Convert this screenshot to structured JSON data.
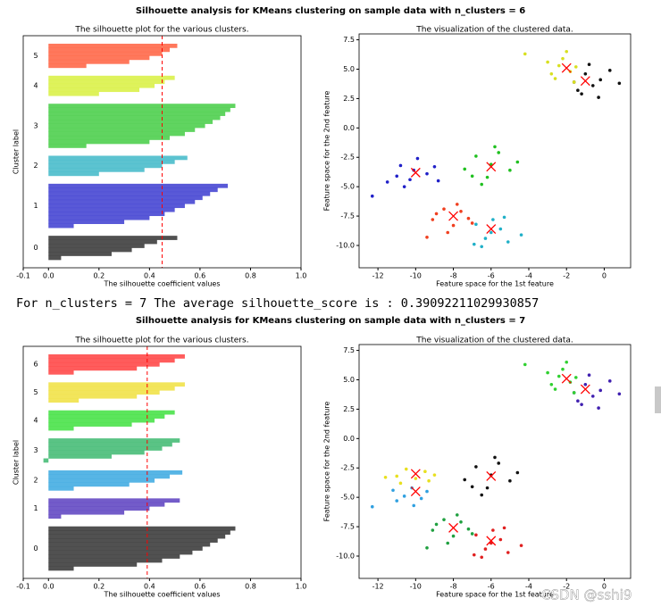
{
  "figures": [
    {
      "title": "Silhouette analysis for KMeans clustering on sample data with n_clusters = 6"
    },
    {
      "title": "Silhouette analysis for KMeans clustering on sample data with n_clusters = 7"
    }
  ],
  "output_line": "For n_clusters = 7 The average silhouette_score is : 0.39092211029930857",
  "watermark": "CSDN @sshi9",
  "chart_data": [
    {
      "type": "silhouette",
      "title": "The silhouette plot for the various clusters.",
      "xlabel": "The silhouette coefficient values",
      "ylabel": "Cluster label",
      "xlim": [
        -0.1,
        1.0
      ],
      "xticks": [
        -0.1,
        {
          "value": 0,
          "label": "0.0"
        },
        0.2,
        0.4,
        0.6,
        0.8,
        {
          "value": 1,
          "label": "1.0"
        }
      ],
      "average": 0.45,
      "series": [
        {
          "name": "0",
          "color": "#333333",
          "values": [
            0.05,
            0.25,
            0.33,
            0.38,
            0.43,
            0.51
          ]
        },
        {
          "name": "1",
          "color": "#3c3cd0",
          "values": [
            0.1,
            0.3,
            0.4,
            0.46,
            0.5,
            0.54,
            0.58,
            0.61,
            0.64,
            0.67,
            0.71
          ]
        },
        {
          "name": "2",
          "color": "#40b8c8",
          "values": [
            0.2,
            0.38,
            0.45,
            0.5,
            0.55
          ]
        },
        {
          "name": "3",
          "color": "#44cc44",
          "values": [
            0.15,
            0.4,
            0.48,
            0.54,
            0.58,
            0.62,
            0.65,
            0.68,
            0.7,
            0.72,
            0.74
          ]
        },
        {
          "name": "4",
          "color": "#d8f040",
          "values": [
            0.2,
            0.36,
            0.42,
            0.46,
            0.5
          ]
        },
        {
          "name": "5",
          "color": "#ff6040",
          "values": [
            0.15,
            0.32,
            0.4,
            0.45,
            0.48,
            0.51
          ]
        }
      ]
    },
    {
      "type": "scatter",
      "title": "The visualization of the clustered data.",
      "xlabel": "Feature space for the 1st feature",
      "ylabel": "Feature space for the 2nd feature",
      "xlim": [
        -13,
        1.4
      ],
      "ylim": [
        -11.9,
        8
      ],
      "xticks": [
        -12,
        -10,
        -8,
        -6,
        -4,
        -2,
        0
      ],
      "yticks": [
        {
          "value": -10,
          "label": "-10.0"
        },
        -7.5,
        {
          "value": -5,
          "label": "-5.0"
        },
        -2.5,
        {
          "value": 0,
          "label": "0.0"
        },
        2.5,
        {
          "value": 5,
          "label": "5.0"
        },
        7.5
      ],
      "center_color": "#ff0000",
      "series": [
        {
          "color": "#111111",
          "x": [
            -1.4,
            -1,
            -0.6,
            -0.2,
            0.3,
            -1.2,
            -0.8,
            0.8,
            -0.3,
            -1.6
          ],
          "y": [
            3.2,
            4.6,
            3.6,
            4.1,
            4.9,
            2.9,
            5.4,
            3.8,
            2.6,
            3.9
          ]
        },
        {
          "color": "#2020c8",
          "x": [
            -11.5,
            -10.8,
            -10.3,
            -9.9,
            -9.4,
            -10.6,
            -9,
            -11,
            -10.1,
            -8.8,
            -12.3
          ],
          "y": [
            -4.6,
            -3.2,
            -4.4,
            -2.6,
            -3.9,
            -5,
            -3.3,
            -4.1,
            -3.6,
            -4.5,
            -5.8
          ]
        },
        {
          "color": "#20b0c8",
          "x": [
            -6.8,
            -6.3,
            -5.9,
            -5.5,
            -5.1,
            -6.5,
            -6,
            -5.3,
            -4.4,
            -6.9
          ],
          "y": [
            -8.2,
            -9.4,
            -7.8,
            -8.6,
            -9.7,
            -10.1,
            -8.9,
            -7.6,
            -9.1,
            -9.9
          ]
        },
        {
          "color": "#20c020",
          "x": [
            -7.4,
            -6.8,
            -6.2,
            -5.6,
            -5,
            -6.5,
            -5.8,
            -4.6,
            -7,
            -6
          ],
          "y": [
            -3.5,
            -2.4,
            -4.2,
            -2.1,
            -3.6,
            -4.8,
            -1.6,
            -2.9,
            -4.1,
            -3.1
          ]
        },
        {
          "color": "#d8e020",
          "x": [
            -3,
            -2.6,
            -2.2,
            -1.8,
            -1.5,
            -2.8,
            -2,
            -2.4,
            -1.6,
            -4.2
          ],
          "y": [
            5.6,
            4.2,
            5.9,
            4.8,
            5.2,
            4.6,
            6.5,
            5.3,
            3.9,
            6.3
          ]
        },
        {
          "color": "#f04020",
          "x": [
            -9.1,
            -8.5,
            -8,
            -7.6,
            -7.2,
            -8.3,
            -7.8,
            -9.4,
            -7,
            -8.9
          ],
          "y": [
            -7.8,
            -6.9,
            -8.3,
            -7.1,
            -7.7,
            -8.9,
            -6.5,
            -9.3,
            -8.1,
            -7.3
          ]
        }
      ],
      "centers": {
        "x": [
          -1,
          -10,
          -6,
          -6,
          -2,
          -8
        ],
        "y": [
          4,
          -3.8,
          -8.6,
          -3.3,
          5.1,
          -7.5
        ]
      }
    },
    {
      "type": "silhouette",
      "title": "The silhouette plot for the various clusters.",
      "xlabel": "The silhouette coefficient values",
      "ylabel": "Cluster label",
      "xlim": [
        -0.1,
        1.0
      ],
      "xticks": [
        -0.1,
        {
          "value": 0,
          "label": "0.0"
        },
        0.2,
        0.4,
        0.6,
        0.8,
        {
          "value": 1,
          "label": "1.0"
        }
      ],
      "average": 0.39092211029930857,
      "series": [
        {
          "name": "0",
          "color": "#333333",
          "values": [
            0.1,
            0.35,
            0.45,
            0.52,
            0.57,
            0.61,
            0.64,
            0.67,
            0.7,
            0.72,
            0.74
          ]
        },
        {
          "name": "1",
          "color": "#5a3fc0",
          "values": [
            0.05,
            0.3,
            0.4,
            0.46,
            0.52
          ]
        },
        {
          "name": "2",
          "color": "#3aa8e0",
          "values": [
            0.1,
            0.32,
            0.42,
            0.48,
            0.53
          ]
        },
        {
          "name": "3",
          "color": "#3db870",
          "values": [
            -0.02,
            0.25,
            0.38,
            0.45,
            0.49,
            0.52
          ]
        },
        {
          "name": "4",
          "color": "#40e040",
          "values": [
            0.1,
            0.33,
            0.42,
            0.46,
            0.5
          ]
        },
        {
          "name": "5",
          "color": "#f0e040",
          "values": [
            0.12,
            0.35,
            0.44,
            0.5,
            0.54
          ]
        },
        {
          "name": "6",
          "color": "#ff4040",
          "values": [
            0.1,
            0.35,
            0.44,
            0.5,
            0.54
          ]
        }
      ]
    },
    {
      "type": "scatter",
      "title": "The visualization of the clustered data.",
      "xlabel": "Feature space for the 1st feature",
      "ylabel": "Feature space for the 2nd feature",
      "xlim": [
        -13,
        1.4
      ],
      "ylim": [
        -11.9,
        8
      ],
      "xticks": [
        -12,
        -10,
        -8,
        -6,
        -4,
        -2,
        0
      ],
      "yticks": [
        {
          "value": -10,
          "label": "-10.0"
        },
        -7.5,
        {
          "value": -5,
          "label": "-5.0"
        },
        -2.5,
        {
          "value": 0,
          "label": "0.0"
        },
        2.5,
        {
          "value": 5,
          "label": "5.0"
        },
        7.5
      ],
      "center_color": "#ff0000",
      "series": [
        {
          "color": "#111111",
          "x": [
            -7.4,
            -6.8,
            -6.2,
            -5.6,
            -5,
            -6.5,
            -5.8,
            -4.6,
            -7,
            -6
          ],
          "y": [
            -3.5,
            -2.4,
            -4.2,
            -2.1,
            -3.6,
            -4.8,
            -1.6,
            -2.9,
            -4.1,
            -3.1
          ]
        },
        {
          "color": "#4020b0",
          "x": [
            -1.4,
            -1,
            -0.6,
            -0.2,
            0.3,
            -1.2,
            -0.8,
            0.8,
            -0.3,
            -1.6
          ],
          "y": [
            3.2,
            4.6,
            3.6,
            4.1,
            4.9,
            2.9,
            5.4,
            3.8,
            2.6,
            3.9
          ]
        },
        {
          "color": "#30a0e0",
          "x": [
            -12.3,
            -11.2,
            -10.6,
            -10.2,
            -9.7,
            -11,
            -10.1,
            -9.4
          ],
          "y": [
            -5.8,
            -4.4,
            -4.9,
            -4.2,
            -5.1,
            -5.3,
            -5.7,
            -4.5
          ]
        },
        {
          "color": "#20a040",
          "x": [
            -9.1,
            -8.5,
            -8,
            -7.6,
            -7.2,
            -8.3,
            -7.8,
            -9.4,
            -7,
            -8.9
          ],
          "y": [
            -7.8,
            -6.9,
            -8.3,
            -7.1,
            -7.7,
            -8.9,
            -6.5,
            -9.3,
            -8.1,
            -7.3
          ]
        },
        {
          "color": "#30d030",
          "x": [
            -3,
            -2.6,
            -2.2,
            -1.8,
            -1.5,
            -2.8,
            -2,
            -2.4,
            -1.6,
            -4.2
          ],
          "y": [
            5.6,
            4.2,
            5.9,
            4.8,
            5.2,
            4.6,
            6.5,
            5.3,
            3.9,
            6.3
          ]
        },
        {
          "color": "#e8e020",
          "x": [
            -11,
            -10.5,
            -10,
            -9.5,
            -9,
            -10.8,
            -9.3,
            -11.6
          ],
          "y": [
            -3.2,
            -2.6,
            -3.4,
            -2.8,
            -3.1,
            -3.8,
            -3.6,
            -3.3
          ]
        },
        {
          "color": "#e02020",
          "x": [
            -6.8,
            -6.3,
            -5.9,
            -5.5,
            -5.1,
            -6.5,
            -6,
            -5.3,
            -4.4,
            -6.9
          ],
          "y": [
            -8.2,
            -9.4,
            -7.8,
            -8.6,
            -9.7,
            -10.1,
            -8.9,
            -7.6,
            -9.1,
            -9.9
          ]
        }
      ],
      "centers": {
        "x": [
          -6,
          -1,
          -10,
          -8,
          -2,
          -10,
          -6
        ],
        "y": [
          -3.2,
          4.2,
          -4.5,
          -7.6,
          5.1,
          -3,
          -8.7
        ]
      }
    }
  ]
}
